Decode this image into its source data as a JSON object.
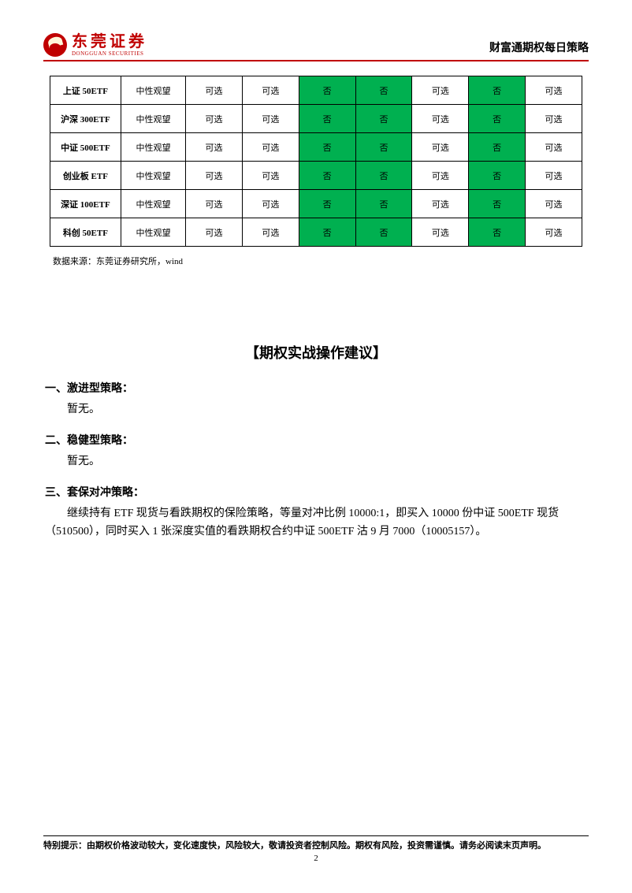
{
  "logo": {
    "cn": "东莞证券",
    "en": "DONGGUAN SECURITIES"
  },
  "header_right": "财富通期权每日策略",
  "table": {
    "rows": [
      {
        "name": "上证 50ETF",
        "outlook": "中性观望",
        "cells": [
          "可选",
          "可选",
          "否",
          "否",
          "可选",
          "否",
          "可选"
        ],
        "green_idx": [
          2,
          3,
          5
        ]
      },
      {
        "name": "沪深 300ETF",
        "outlook": "中性观望",
        "cells": [
          "可选",
          "可选",
          "否",
          "否",
          "可选",
          "否",
          "可选"
        ],
        "green_idx": [
          2,
          3,
          5
        ]
      },
      {
        "name": "中证 500ETF",
        "outlook": "中性观望",
        "cells": [
          "可选",
          "可选",
          "否",
          "否",
          "可选",
          "否",
          "可选"
        ],
        "green_idx": [
          2,
          3,
          5
        ]
      },
      {
        "name": "创业板 ETF",
        "outlook": "中性观望",
        "cells": [
          "可选",
          "可选",
          "否",
          "否",
          "可选",
          "否",
          "可选"
        ],
        "green_idx": [
          2,
          3,
          5
        ]
      },
      {
        "name": "深证 100ETF",
        "outlook": "中性观望",
        "cells": [
          "可选",
          "可选",
          "否",
          "否",
          "可选",
          "否",
          "可选"
        ],
        "green_idx": [
          2,
          3,
          5
        ]
      },
      {
        "name": "科创 50ETF",
        "outlook": "中性观望",
        "cells": [
          "可选",
          "可选",
          "否",
          "否",
          "可选",
          "否",
          "可选"
        ],
        "green_idx": [
          2,
          3,
          5
        ]
      }
    ],
    "colors": {
      "green": "#00b050",
      "border": "#000000"
    }
  },
  "source": "数据来源：东莞证券研究所，wind",
  "section_title": "【期权实战操作建议】",
  "strategies": {
    "s1_heading": "一、激进型策略：",
    "s1_body": "暂无。",
    "s2_heading": "二、稳健型策略：",
    "s2_body": "暂无。",
    "s3_heading": "三、套保对冲策略：",
    "s3_body": "继续持有 ETF 现货与看跌期权的保险策略，等量对冲比例 10000:1，即买入 10000 份中证 500ETF 现货（510500），同时买入 1 张深度实值的看跌期权合约中证 500ETF 沽 9 月 7000（10005157）。"
  },
  "footer": {
    "note": "特别提示：由期权价格波动较大，变化速度快，风险较大，敬请投资者控制风险。期权有风险，投资需谨慎。请务必阅读末页声明。",
    "page_num": "2"
  }
}
